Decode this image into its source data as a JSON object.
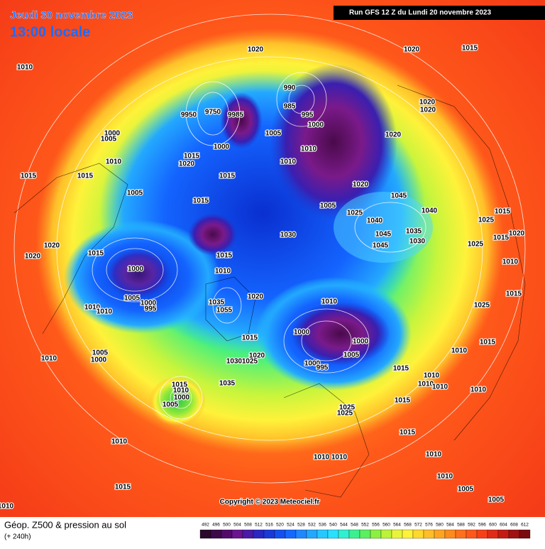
{
  "header": {
    "date": "Jeudi 30 novembre 2023",
    "time": "13:00 locale",
    "run": "Run GFS 12 Z du Lundi 20 novembre 2023"
  },
  "copyright": "Copyright © 2023 Meteociel.fr",
  "footer": {
    "title": "Géop. Z500 & pression au sol",
    "lead": "(+ 240h)"
  },
  "scale": {
    "labels": [
      492,
      496,
      500,
      504,
      508,
      512,
      516,
      520,
      524,
      528,
      532,
      536,
      540,
      544,
      548,
      552,
      556,
      560,
      564,
      568,
      572,
      576,
      580,
      584,
      588,
      592,
      596,
      600,
      604,
      608,
      612
    ]
  },
  "pressure_labels": [
    1010,
    1020,
    1020,
    1015,
    9950,
    9750,
    9985,
    990,
    985,
    995,
    1000,
    1020,
    1020,
    1020,
    1005,
    1000,
    1010,
    1010,
    1015,
    1020,
    1015,
    1015,
    1015,
    1010,
    1000,
    1005,
    1005,
    1020,
    1045,
    1015,
    1005,
    1025,
    1040,
    1040,
    1015,
    1025,
    1045,
    1035,
    1030,
    1045,
    1030,
    1015,
    1020,
    1025,
    1020,
    1020,
    1015,
    1000,
    1015,
    1010,
    1010,
    1015,
    1020,
    1005,
    1000,
    995,
    1010,
    1010,
    1035,
    1055,
    1010,
    1025,
    1000,
    1000,
    1015,
    1015,
    1005,
    1005,
    1000,
    1010,
    1020,
    1030,
    1025,
    1000,
    995,
    1010,
    1015,
    1010,
    1010,
    1010,
    1010,
    1035,
    1015,
    1010,
    1000,
    1005,
    1015,
    1025,
    1025,
    1015,
    1010,
    1010,
    1010,
    1010,
    1010,
    1015,
    1005,
    1005,
    1010
  ]
}
